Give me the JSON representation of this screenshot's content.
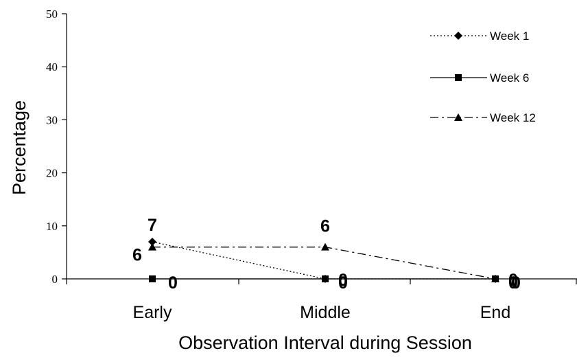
{
  "chart_data": {
    "type": "line",
    "title": "",
    "xlabel": "Observation Interval during Session",
    "ylabel": "Percentage",
    "categories": [
      "Early",
      "Middle",
      "End"
    ],
    "ylim": [
      0,
      50
    ],
    "yticks": [
      0,
      10,
      20,
      30,
      40,
      50
    ],
    "grid": false,
    "legend": "top-right",
    "series": [
      {
        "name": "Week 1",
        "values": [
          7,
          0,
          0
        ],
        "line_style": "dotted",
        "marker": "diamond",
        "labels": [
          "7",
          "0",
          "0"
        ]
      },
      {
        "name": "Week 6",
        "values": [
          0,
          0,
          0
        ],
        "line_style": "solid",
        "marker": "square",
        "labels": [
          "0",
          "0",
          "0"
        ]
      },
      {
        "name": "Week 12",
        "values": [
          6,
          6,
          0
        ],
        "line_style": "dash-dot",
        "marker": "triangle",
        "labels": [
          "6",
          "6",
          "0"
        ]
      }
    ],
    "color": "#000000"
  }
}
